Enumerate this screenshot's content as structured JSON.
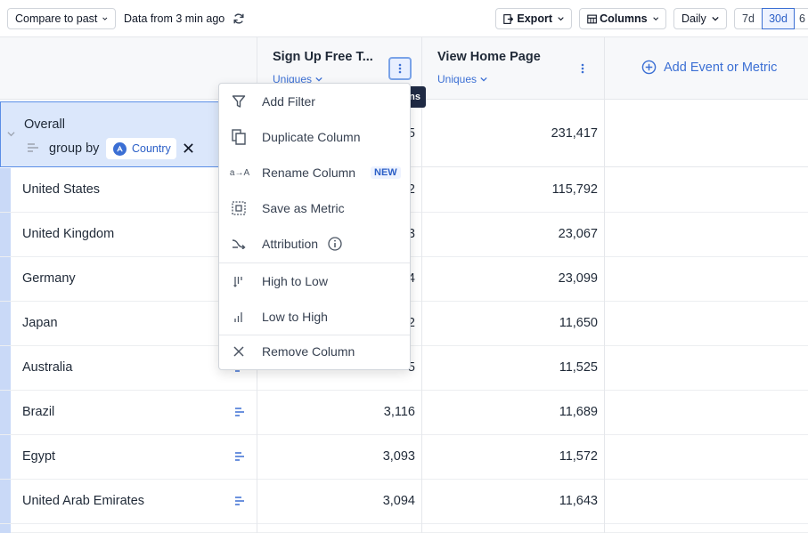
{
  "toolbar": {
    "compare_label": "Compare to past",
    "data_freshness": "Data from 3 min ago",
    "export_label": "Export",
    "columns_label": "Columns",
    "interval_label": "Daily",
    "ranges": [
      "7d",
      "30d",
      "6"
    ],
    "active_range": "30d"
  },
  "columns": [
    {
      "title": "Sign Up Free T...",
      "sub": "Uniques"
    },
    {
      "title": "View Home Page",
      "sub": "Uniques"
    }
  ],
  "add_metric_label": "Add Event or Metric",
  "tooltip_text": "ns",
  "overall": {
    "title": "Overall",
    "group_by_label": "group by",
    "chip_label": "Country",
    "value_a_partial": "5",
    "value_b": "231,417"
  },
  "rows": [
    {
      "label": "United States",
      "a": "2",
      "b": "115,792"
    },
    {
      "label": "United Kingdom",
      "a": "3",
      "b": "23,067"
    },
    {
      "label": "Germany",
      "a": "4",
      "b": "23,099"
    },
    {
      "label": "Japan",
      "a": "2",
      "b": "11,650"
    },
    {
      "label": "Australia",
      "a": "5",
      "b": "11,525"
    },
    {
      "label": "Brazil",
      "a": "3,116",
      "b": "11,689"
    },
    {
      "label": "Egypt",
      "a": "3,093",
      "b": "11,572"
    },
    {
      "label": "United Arab Emirates",
      "a": "3,094",
      "b": "11,643"
    }
  ],
  "menu": {
    "items": [
      {
        "label": "Add Filter",
        "icon": "filter-icon"
      },
      {
        "label": "Duplicate Column",
        "icon": "duplicate-icon"
      },
      {
        "label": "Rename Column",
        "icon": "rename-icon",
        "badge": "NEW"
      },
      {
        "label": "Save as Metric",
        "icon": "save-metric-icon"
      },
      {
        "label": "Attribution",
        "icon": "attribution-icon"
      },
      {
        "label": "High to Low",
        "icon": "sort-desc-icon"
      },
      {
        "label": "Low to High",
        "icon": "sort-asc-icon"
      },
      {
        "label": "Remove Column",
        "icon": "close-icon"
      }
    ]
  },
  "colors": {
    "accent": "#3b6fd4",
    "row_bar": "#c9d9f7",
    "selected_bg": "#dbe7fb"
  }
}
